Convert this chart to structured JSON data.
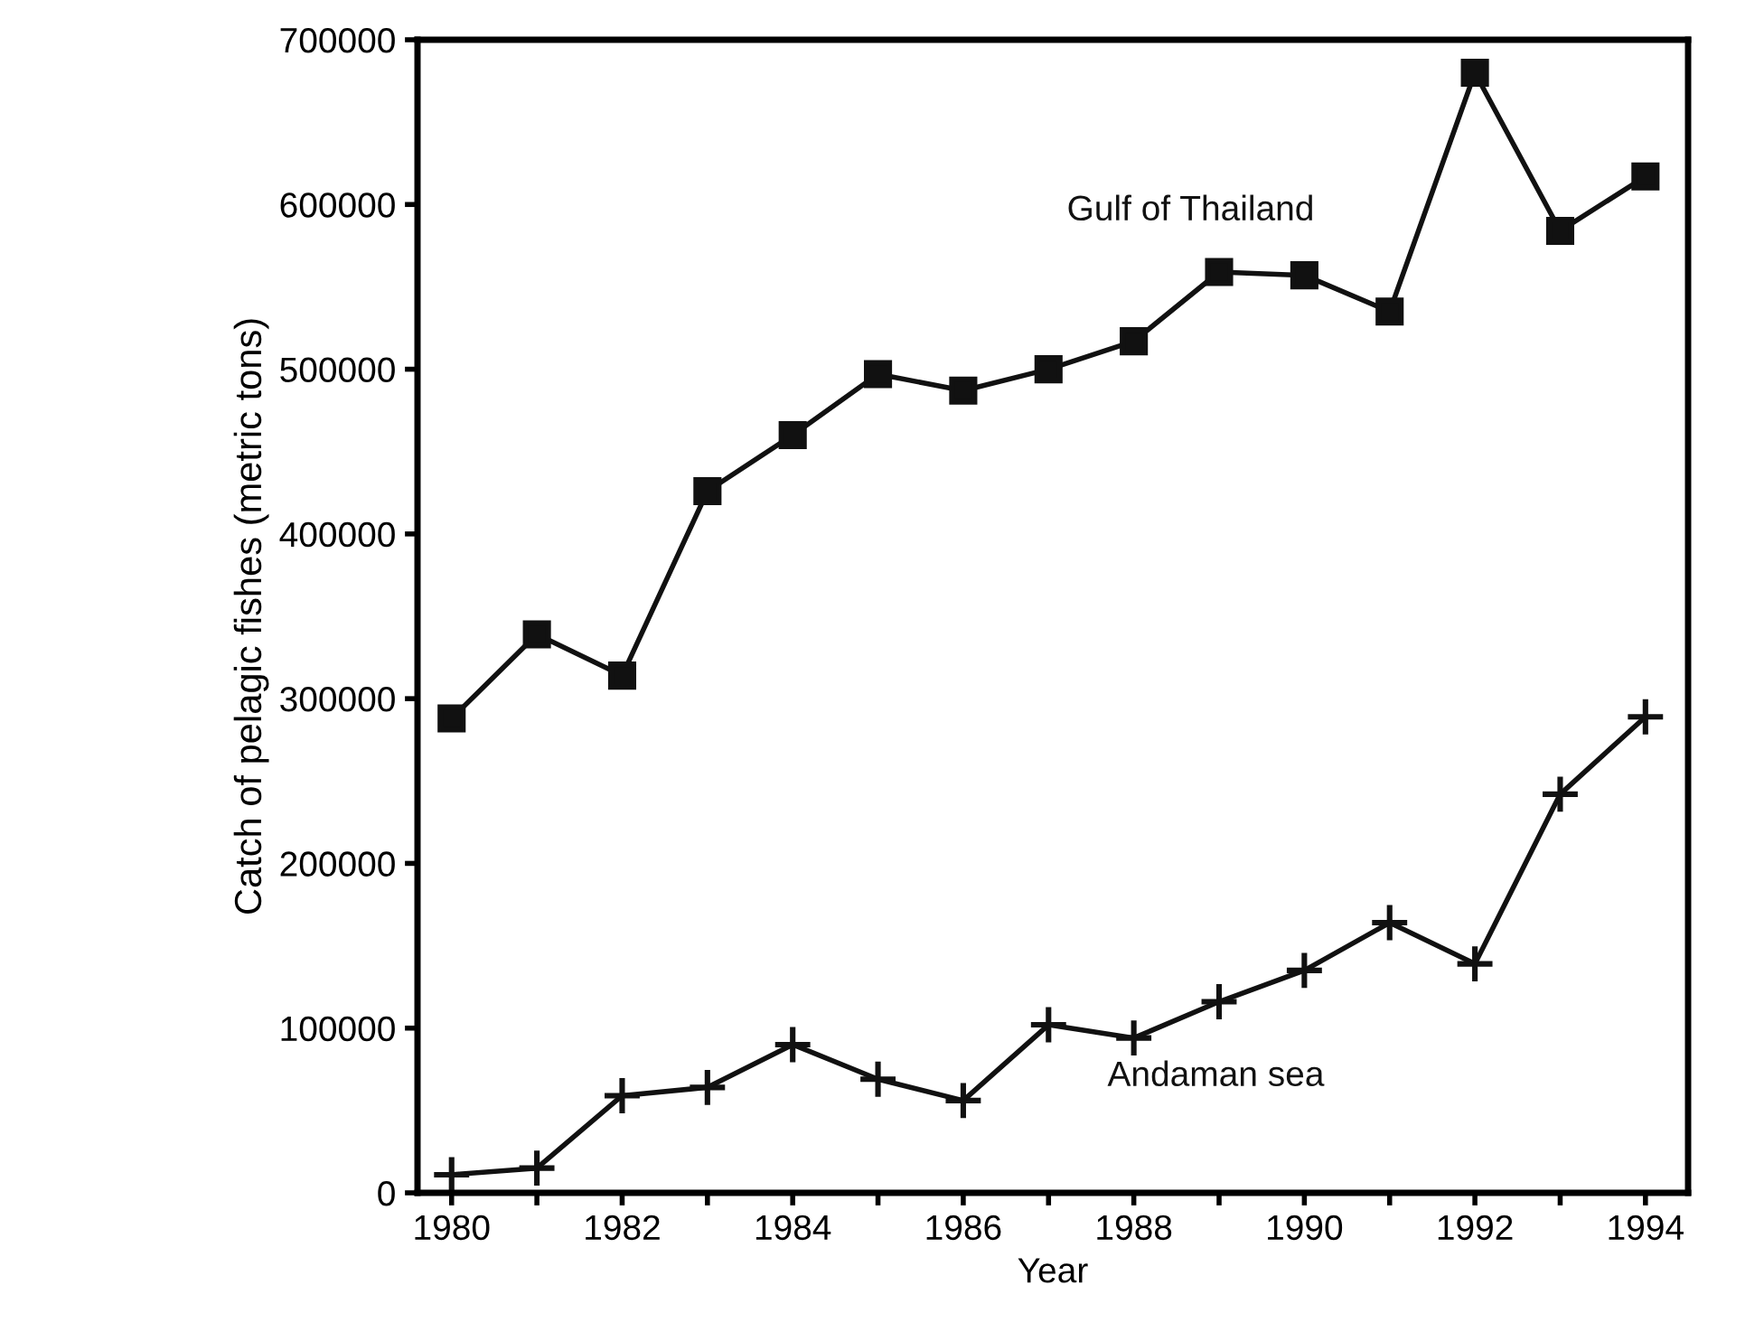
{
  "chart_data": {
    "type": "line",
    "xlabel": "Year",
    "ylabel": "Catch of pelagic fishes (metric tons)",
    "x": [
      1980,
      1981,
      1982,
      1983,
      1984,
      1985,
      1986,
      1987,
      1988,
      1989,
      1990,
      1991,
      1992,
      1993,
      1994
    ],
    "series": [
      {
        "name": "Gulf of Thailand",
        "color": "#111111",
        "marker": "square",
        "values": [
          288000,
          339000,
          314000,
          426000,
          460000,
          497000,
          487000,
          500000,
          517000,
          559000,
          557000,
          535000,
          680000,
          584000,
          617000
        ]
      },
      {
        "name": "Andaman sea",
        "color": "#111111",
        "marker": "cross",
        "values": [
          11000,
          15000,
          59000,
          64000,
          90000,
          69000,
          56000,
          102000,
          94000,
          116000,
          135000,
          164000,
          139000,
          242000,
          289000
        ]
      }
    ],
    "xlim": [
      1979.6,
      1994.5
    ],
    "ylim": [
      0,
      700000
    ],
    "xticks": [
      1980,
      {
        "value": 1981,
        "label": null
      },
      1982,
      {
        "value": 1983,
        "label": null
      },
      1984,
      {
        "value": 1985,
        "label": null
      },
      1986,
      {
        "value": 1987,
        "label": null
      },
      1988,
      {
        "value": 1989,
        "label": null
      },
      1990,
      {
        "value": 1991,
        "label": null
      },
      1992,
      {
        "value": 1993,
        "label": null
      },
      1994
    ],
    "yticks": [
      0,
      100000,
      200000,
      300000,
      400000,
      500000,
      600000,
      700000
    ],
    "grid": false,
    "legend": false,
    "line_style": "solid"
  }
}
